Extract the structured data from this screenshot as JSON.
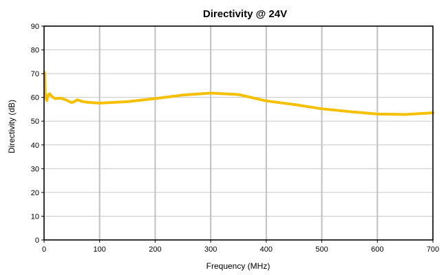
{
  "chart_data": {
    "type": "line",
    "title": "Directivity @ 24V",
    "xlabel": "Frequency (MHz)",
    "ylabel": "Directivity (dB)",
    "xlim": [
      0,
      700
    ],
    "ylim": [
      0,
      90
    ],
    "x_ticks": [
      0,
      100,
      200,
      300,
      400,
      500,
      600,
      700
    ],
    "y_ticks": [
      0,
      10,
      20,
      30,
      40,
      50,
      60,
      70,
      80,
      90
    ],
    "grid": {
      "x": true,
      "y": true
    },
    "legend": "none",
    "colors": {
      "series": "#f5c000",
      "grid_x": "#c0c0c0",
      "grid_y": "#c8c8c8",
      "frame": "#000000"
    },
    "series": [
      {
        "x": [
          1,
          2,
          3,
          4,
          5,
          6,
          8,
          10,
          12,
          15,
          20,
          25,
          30,
          35,
          40,
          45,
          50,
          55,
          60,
          70,
          80,
          100,
          150,
          200,
          250,
          300,
          350,
          400,
          450,
          500,
          550,
          600,
          650,
          700
        ],
        "y": [
          70.5,
          62,
          60,
          59.5,
          58.7,
          60,
          61.2,
          61.5,
          61,
          60.2,
          59.5,
          59.6,
          59.7,
          59.3,
          58.9,
          58.3,
          57.8,
          58.3,
          59,
          58.2,
          57.9,
          57.6,
          58.2,
          59.5,
          61,
          61.8,
          61.2,
          58.5,
          57,
          55.2,
          54,
          53,
          52.8,
          53.5
        ]
      }
    ]
  }
}
